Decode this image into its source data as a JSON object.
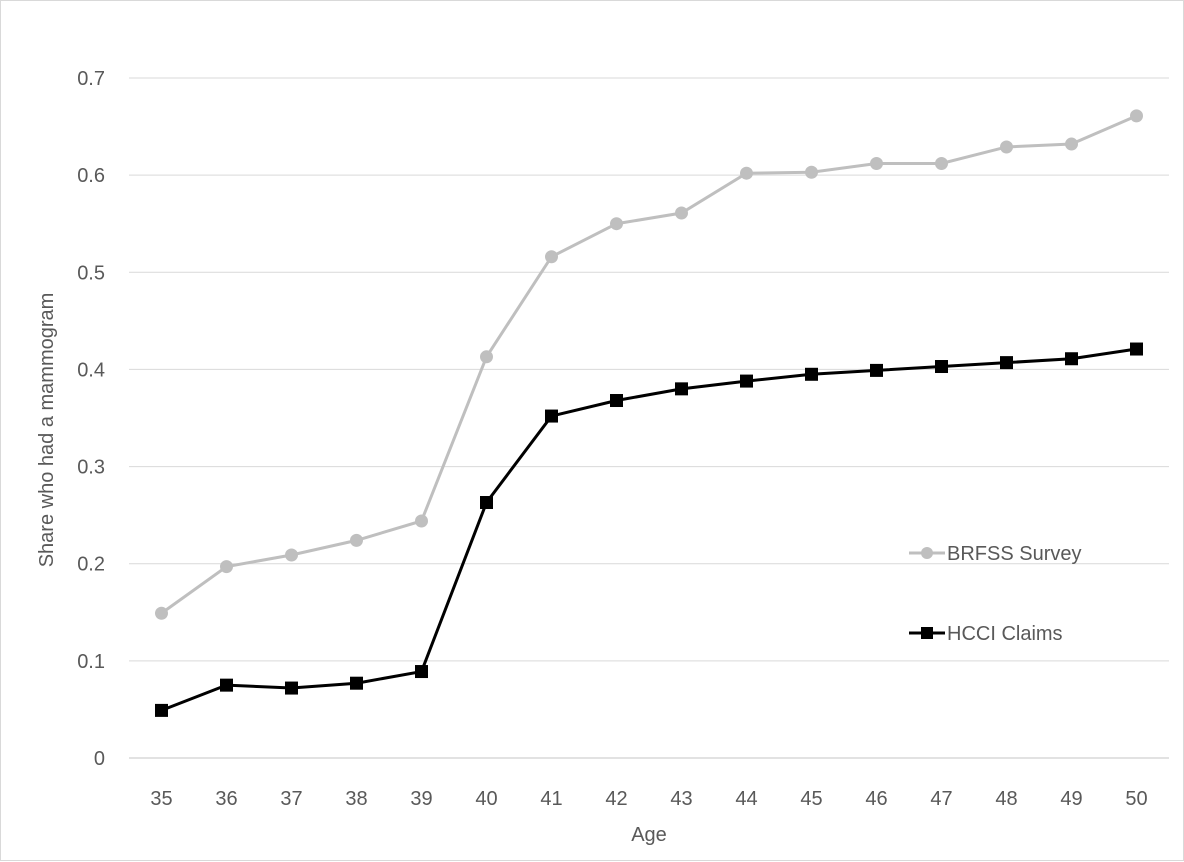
{
  "chart_data": {
    "type": "line",
    "title": "",
    "xlabel": "Age",
    "ylabel": "Share who had a mammogram",
    "categories": [
      "35",
      "36",
      "37",
      "38",
      "39",
      "40",
      "41",
      "42",
      "43",
      "44",
      "45",
      "46",
      "47",
      "48",
      "49",
      "50"
    ],
    "ylim": [
      0,
      0.7
    ],
    "yticks": [
      "0",
      "0.1",
      "0.2",
      "0.3",
      "0.4",
      "0.5",
      "0.6",
      "0.7"
    ],
    "grid": true,
    "legend_position": "right",
    "series": [
      {
        "name": "BRFSS Survey",
        "color": "#bfbfbf",
        "marker": "circle",
        "values": [
          0.149,
          0.197,
          0.209,
          0.224,
          0.244,
          0.413,
          0.516,
          0.55,
          0.561,
          0.602,
          0.603,
          0.612,
          0.612,
          0.629,
          0.632,
          0.661
        ]
      },
      {
        "name": "HCCI Claims",
        "color": "#000000",
        "marker": "square",
        "values": [
          0.049,
          0.075,
          0.072,
          0.077,
          0.089,
          0.263,
          0.352,
          0.368,
          0.38,
          0.388,
          0.395,
          0.399,
          0.403,
          0.407,
          0.411,
          0.421
        ]
      }
    ]
  }
}
